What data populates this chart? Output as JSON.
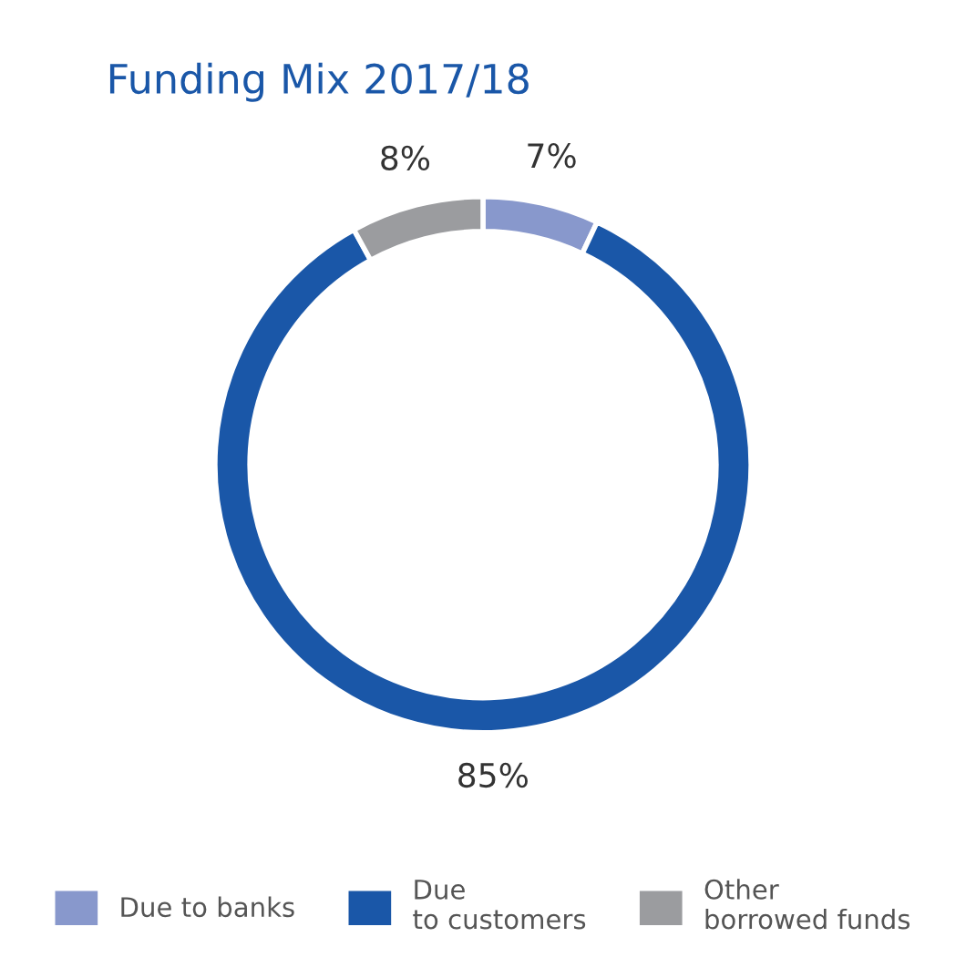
{
  "chart_data": {
    "type": "donut",
    "title": "Funding Mix 2017/18",
    "categories": [
      "Due to banks",
      "Due\nto customers",
      "Other\nborrowed funds"
    ],
    "values": [
      7,
      85,
      8
    ],
    "colors": [
      "#8898cc",
      "#1a57a8",
      "#9b9c9f"
    ],
    "value_labels": [
      "7%",
      "85%",
      "8%"
    ],
    "legend": "bottom"
  }
}
